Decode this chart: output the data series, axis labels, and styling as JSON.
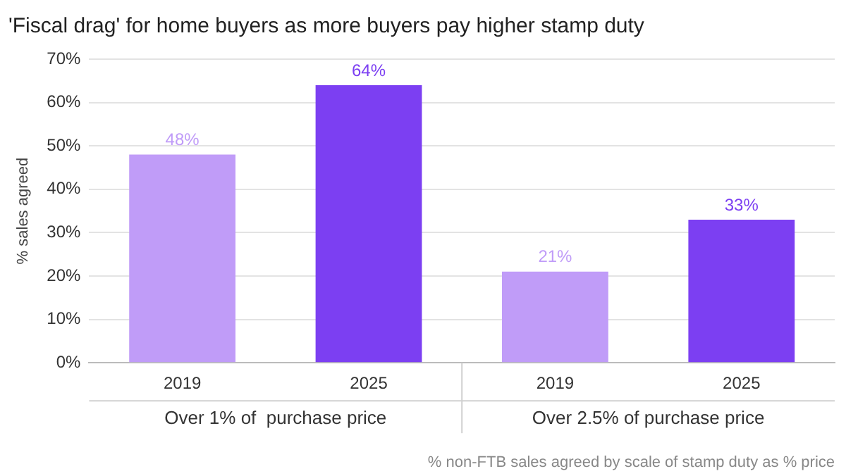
{
  "chart_data": {
    "type": "bar",
    "title": "'Fiscal drag' for home buyers as more buyers pay higher stamp duty",
    "ylabel": "% sales agreed",
    "categories": [
      "2019",
      "2025",
      "2019",
      "2025"
    ],
    "values": [
      48,
      64,
      21,
      33
    ],
    "value_labels": [
      "48%",
      "64%",
      "21%",
      "33%"
    ],
    "colors": [
      "#c09cf8",
      "#7c3ff2",
      "#c09cf8",
      "#7c3ff2"
    ],
    "ylim": [
      0,
      70
    ],
    "yticks": [
      {
        "value": 0,
        "label": "0%"
      },
      {
        "value": 10,
        "label": "10%"
      },
      {
        "value": 20,
        "label": "20%"
      },
      {
        "value": 30,
        "label": "30%"
      },
      {
        "value": 40,
        "label": "40%"
      },
      {
        "value": 50,
        "label": "50%"
      },
      {
        "value": 60,
        "label": "60%"
      },
      {
        "value": 70,
        "label": "70%"
      }
    ],
    "grid": "y",
    "legend": false,
    "annotations": [
      "Over 1% of  purchase price",
      "Over 2.5% of purchase price",
      "% non-FTB sales agreed by scale of stamp duty as % price"
    ]
  }
}
